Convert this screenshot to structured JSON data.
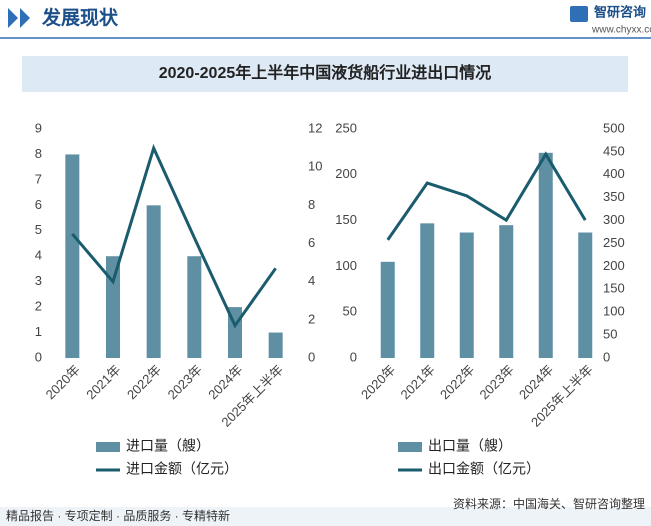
{
  "header": {
    "title": "发展现状",
    "brand": "智研咨询",
    "url": "www.chyxx.com"
  },
  "figure_title": "2020-2025年上半年中国液货船行业进出口情况",
  "chart_data": [
    {
      "type": "combo",
      "categories": [
        "2020年",
        "2021年",
        "2022年",
        "2023年",
        "2024年",
        "2025年上半年"
      ],
      "series": [
        {
          "name": "进口量（艘）",
          "type": "bar",
          "color": "#5e8fa3",
          "values": [
            8,
            4,
            6,
            4,
            2,
            1
          ]
        },
        {
          "name": "进口金额（亿元）",
          "type": "line",
          "axis": "y2",
          "color": "#1a5c6e",
          "values": [
            6.5,
            4.0,
            11.0,
            6.3,
            1.7,
            4.7
          ]
        }
      ],
      "ylim": [
        0,
        9
      ],
      "yticks": [
        0,
        1,
        2,
        3,
        4,
        5,
        6,
        7,
        8,
        9
      ],
      "y2lim": [
        0,
        12
      ],
      "y2ticks": [
        0,
        2,
        4,
        6,
        8,
        10,
        12
      ]
    },
    {
      "type": "combo",
      "categories": [
        "2020年",
        "2021年",
        "2022年",
        "2023年",
        "2024年",
        "2025年上半年"
      ],
      "series": [
        {
          "name": "出口量（艘）",
          "type": "bar",
          "color": "#5e8fa3",
          "values": [
            105,
            147,
            137,
            145,
            224,
            137
          ]
        },
        {
          "name": "出口金额（亿元）",
          "type": "line",
          "axis": "y2",
          "color": "#1a5c6e",
          "values": [
            258,
            382,
            354,
            301,
            445,
            301
          ]
        }
      ],
      "ylim": [
        0,
        250
      ],
      "yticks": [
        0,
        50,
        100,
        150,
        200,
        250
      ],
      "y2lim": [
        0,
        500
      ],
      "y2ticks": [
        0,
        50,
        100,
        150,
        200,
        250,
        300,
        350,
        400,
        450,
        500
      ]
    }
  ],
  "footer": {
    "slogan": "精品报告 · 专项定制 · 品质服务 · 专精特新",
    "source": "资料来源：中国海关、智研咨询整理"
  }
}
